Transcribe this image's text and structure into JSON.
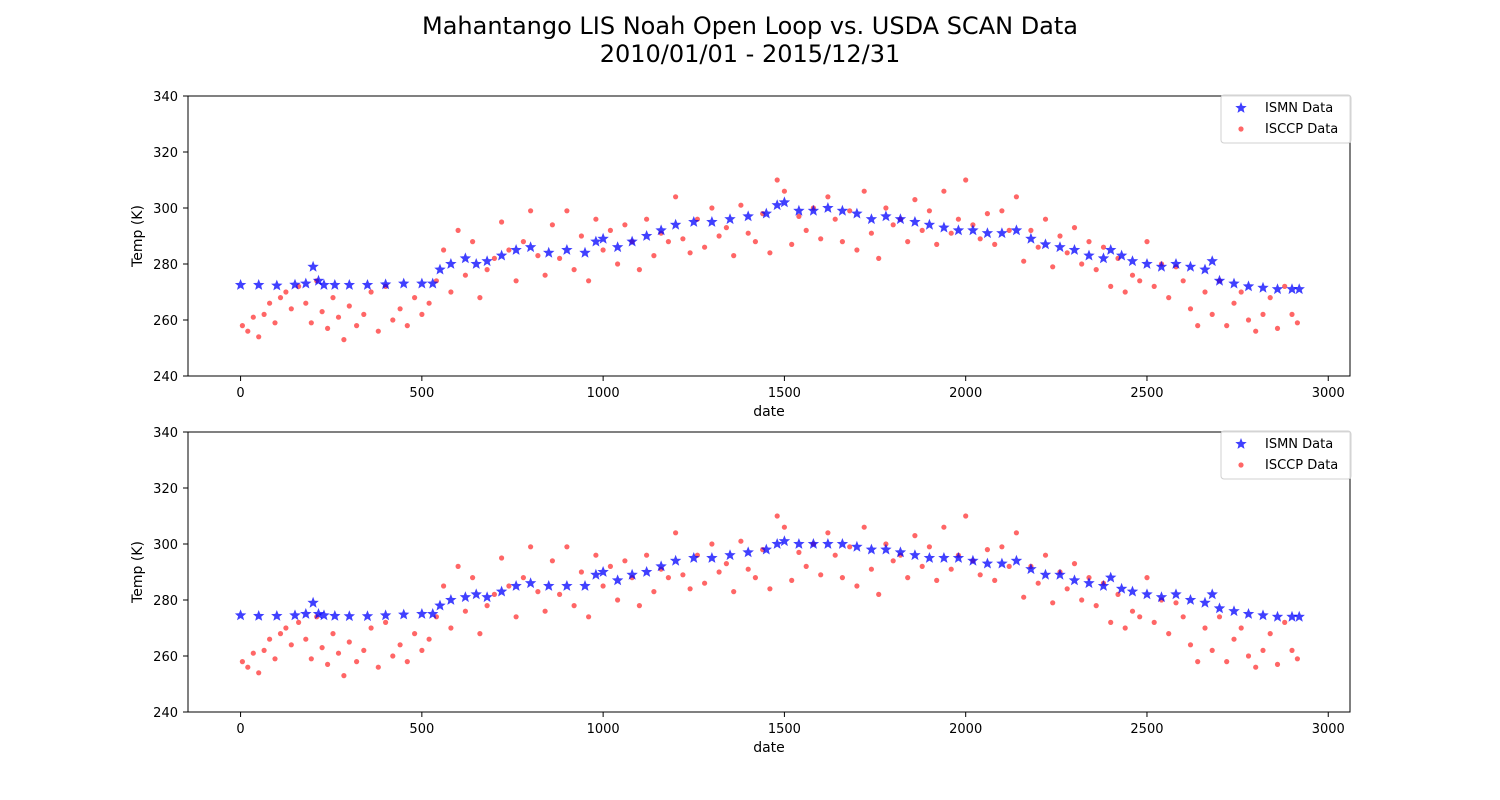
{
  "figure": {
    "title_line1": "Mahantango LIS Noah Open Loop vs. USDA SCAN Data",
    "title_line2": "2010/01/01 - 2015/12/31"
  },
  "colors": {
    "ismn": "#0000ff",
    "isccp": "#ff0000"
  },
  "chart_data": [
    {
      "type": "scatter",
      "xlabel": "date",
      "ylabel": "Temp (K)",
      "xlim": [
        -145,
        3060
      ],
      "ylim": [
        240,
        340
      ],
      "xticks": [
        0,
        500,
        1000,
        1500,
        2000,
        2500,
        3000
      ],
      "yticks": [
        240,
        260,
        280,
        300,
        320,
        340
      ],
      "legend_position": "top-right",
      "series": [
        {
          "name": "ISMN Data",
          "marker": "star",
          "color": "#0000ff",
          "x": [
            0,
            50,
            100,
            150,
            180,
            200,
            215,
            230,
            260,
            300,
            350,
            400,
            450,
            500,
            530,
            550,
            580,
            620,
            650,
            680,
            720,
            760,
            800,
            850,
            900,
            950,
            980,
            1000,
            1040,
            1080,
            1120,
            1160,
            1200,
            1250,
            1300,
            1350,
            1400,
            1450,
            1480,
            1500,
            1540,
            1580,
            1620,
            1660,
            1700,
            1740,
            1780,
            1820,
            1860,
            1900,
            1940,
            1980,
            2020,
            2060,
            2100,
            2140,
            2180,
            2220,
            2260,
            2300,
            2340,
            2380,
            2400,
            2430,
            2460,
            2500,
            2540,
            2580,
            2620,
            2660,
            2680,
            2700,
            2740,
            2780,
            2820,
            2860,
            2900,
            2920
          ],
          "y": [
            272.5,
            272.5,
            272.3,
            272.6,
            273,
            279,
            274,
            272.5,
            272.5,
            272.5,
            272.5,
            272.7,
            273,
            273,
            273,
            278,
            280,
            282,
            280,
            281,
            283,
            285,
            286,
            284,
            285,
            284,
            288,
            289,
            286,
            288,
            290,
            292,
            294,
            295,
            295,
            296,
            297,
            298,
            301,
            302,
            299,
            299,
            300,
            299,
            298,
            296,
            297,
            296,
            295,
            294,
            293,
            292,
            292,
            291,
            291,
            292,
            289,
            287,
            286,
            285,
            283,
            282,
            285,
            283,
            281,
            280,
            279,
            280,
            279,
            278,
            281,
            274,
            273,
            272,
            271.5,
            271,
            271,
            271
          ]
        },
        {
          "name": "ISCCP Data",
          "marker": "circle",
          "color": "#ff0000",
          "x": [
            5,
            20,
            35,
            50,
            65,
            80,
            95,
            110,
            125,
            140,
            160,
            180,
            195,
            210,
            225,
            240,
            255,
            270,
            285,
            300,
            320,
            340,
            360,
            380,
            400,
            420,
            440,
            460,
            480,
            500,
            520,
            540,
            560,
            580,
            600,
            620,
            640,
            660,
            680,
            700,
            720,
            740,
            760,
            780,
            800,
            820,
            840,
            860,
            880,
            900,
            920,
            940,
            960,
            980,
            1000,
            1020,
            1040,
            1060,
            1080,
            1100,
            1120,
            1140,
            1160,
            1180,
            1200,
            1220,
            1240,
            1260,
            1280,
            1300,
            1320,
            1340,
            1360,
            1380,
            1400,
            1420,
            1440,
            1460,
            1480,
            1500,
            1520,
            1540,
            1560,
            1580,
            1600,
            1620,
            1640,
            1660,
            1680,
            1700,
            1720,
            1740,
            1760,
            1780,
            1800,
            1820,
            1840,
            1860,
            1880,
            1900,
            1920,
            1940,
            1960,
            1980,
            2000,
            2020,
            2040,
            2060,
            2080,
            2100,
            2120,
            2140,
            2160,
            2180,
            2200,
            2220,
            2240,
            2260,
            2280,
            2300,
            2320,
            2340,
            2360,
            2380,
            2400,
            2420,
            2440,
            2460,
            2480,
            2500,
            2520,
            2540,
            2560,
            2580,
            2600,
            2620,
            2640,
            2660,
            2680,
            2700,
            2720,
            2740,
            2760,
            2780,
            2800,
            2820,
            2840,
            2860,
            2880,
            2900,
            2915
          ],
          "y": [
            258,
            256,
            261,
            254,
            262,
            266,
            259,
            268,
            270,
            264,
            272,
            266,
            259,
            274,
            263,
            257,
            268,
            261,
            253,
            265,
            258,
            262,
            270,
            256,
            272,
            260,
            264,
            258,
            268,
            262,
            266,
            274,
            285,
            270,
            292,
            276,
            288,
            268,
            278,
            282,
            295,
            285,
            274,
            288,
            299,
            283,
            276,
            294,
            282,
            299,
            278,
            290,
            274,
            296,
            285,
            292,
            280,
            294,
            288,
            278,
            296,
            283,
            291,
            288,
            304,
            289,
            284,
            296,
            286,
            300,
            290,
            293,
            283,
            301,
            291,
            288,
            298,
            284,
            310,
            306,
            287,
            297,
            292,
            300,
            289,
            304,
            296,
            288,
            299,
            285,
            306,
            291,
            282,
            300,
            294,
            296,
            288,
            303,
            292,
            299,
            287,
            306,
            291,
            296,
            310,
            294,
            289,
            298,
            287,
            299,
            292,
            304,
            281,
            292,
            286,
            296,
            279,
            290,
            284,
            293,
            280,
            288,
            278,
            286,
            272,
            282,
            270,
            276,
            274,
            288,
            272,
            280,
            268,
            279,
            274,
            264,
            258,
            270,
            262,
            274,
            258,
            266,
            270,
            260,
            256,
            262,
            268,
            257,
            272,
            262,
            259
          ]
        }
      ]
    },
    {
      "type": "scatter",
      "xlabel": "date",
      "ylabel": "Temp (K)",
      "xlim": [
        -145,
        3060
      ],
      "ylim": [
        240,
        340
      ],
      "xticks": [
        0,
        500,
        1000,
        1500,
        2000,
        2500,
        3000
      ],
      "yticks": [
        240,
        260,
        280,
        300,
        320,
        340
      ],
      "legend_position": "top-right",
      "series": [
        {
          "name": "ISMN Data",
          "marker": "star",
          "color": "#0000ff",
          "x": [
            0,
            50,
            100,
            150,
            180,
            200,
            215,
            230,
            260,
            300,
            350,
            400,
            450,
            500,
            530,
            550,
            580,
            620,
            650,
            680,
            720,
            760,
            800,
            850,
            900,
            950,
            980,
            1000,
            1040,
            1080,
            1120,
            1160,
            1200,
            1250,
            1300,
            1350,
            1400,
            1450,
            1480,
            1500,
            1540,
            1580,
            1620,
            1660,
            1700,
            1740,
            1780,
            1820,
            1860,
            1900,
            1940,
            1980,
            2020,
            2060,
            2100,
            2140,
            2180,
            2220,
            2260,
            2300,
            2340,
            2380,
            2400,
            2430,
            2460,
            2500,
            2540,
            2580,
            2620,
            2660,
            2680,
            2700,
            2740,
            2780,
            2820,
            2860,
            2900,
            2920
          ],
          "y": [
            274.5,
            274.3,
            274.3,
            274.5,
            275,
            279,
            275,
            274.5,
            274.3,
            274.2,
            274.2,
            274.5,
            274.8,
            275,
            275,
            278,
            280,
            281,
            282,
            281,
            283,
            285,
            286,
            285,
            285,
            285,
            289,
            290,
            287,
            289,
            290,
            292,
            294,
            295,
            295,
            296,
            297,
            298,
            300,
            301,
            300,
            300,
            300,
            300,
            299,
            298,
            298,
            297,
            296,
            295,
            295,
            295,
            294,
            293,
            293,
            294,
            291,
            289,
            289,
            287,
            286,
            285,
            288,
            284,
            283,
            282,
            281,
            282,
            280,
            279,
            282,
            277,
            276,
            275,
            274.5,
            274,
            274,
            274
          ]
        },
        {
          "name": "ISCCP Data",
          "marker": "circle",
          "color": "#ff0000",
          "x": [
            5,
            20,
            35,
            50,
            65,
            80,
            95,
            110,
            125,
            140,
            160,
            180,
            195,
            210,
            225,
            240,
            255,
            270,
            285,
            300,
            320,
            340,
            360,
            380,
            400,
            420,
            440,
            460,
            480,
            500,
            520,
            540,
            560,
            580,
            600,
            620,
            640,
            660,
            680,
            700,
            720,
            740,
            760,
            780,
            800,
            820,
            840,
            860,
            880,
            900,
            920,
            940,
            960,
            980,
            1000,
            1020,
            1040,
            1060,
            1080,
            1100,
            1120,
            1140,
            1160,
            1180,
            1200,
            1220,
            1240,
            1260,
            1280,
            1300,
            1320,
            1340,
            1360,
            1380,
            1400,
            1420,
            1440,
            1460,
            1480,
            1500,
            1520,
            1540,
            1560,
            1580,
            1600,
            1620,
            1640,
            1660,
            1680,
            1700,
            1720,
            1740,
            1760,
            1780,
            1800,
            1820,
            1840,
            1860,
            1880,
            1900,
            1920,
            1940,
            1960,
            1980,
            2000,
            2020,
            2040,
            2060,
            2080,
            2100,
            2120,
            2140,
            2160,
            2180,
            2200,
            2220,
            2240,
            2260,
            2280,
            2300,
            2320,
            2340,
            2360,
            2380,
            2400,
            2420,
            2440,
            2460,
            2480,
            2500,
            2520,
            2540,
            2560,
            2580,
            2600,
            2620,
            2640,
            2660,
            2680,
            2700,
            2720,
            2740,
            2760,
            2780,
            2800,
            2820,
            2840,
            2860,
            2880,
            2900,
            2915
          ],
          "y": [
            258,
            256,
            261,
            254,
            262,
            266,
            259,
            268,
            270,
            264,
            272,
            266,
            259,
            274,
            263,
            257,
            268,
            261,
            253,
            265,
            258,
            262,
            270,
            256,
            272,
            260,
            264,
            258,
            268,
            262,
            266,
            274,
            285,
            270,
            292,
            276,
            288,
            268,
            278,
            282,
            295,
            285,
            274,
            288,
            299,
            283,
            276,
            294,
            282,
            299,
            278,
            290,
            274,
            296,
            285,
            292,
            280,
            294,
            288,
            278,
            296,
            283,
            291,
            288,
            304,
            289,
            284,
            296,
            286,
            300,
            290,
            293,
            283,
            301,
            291,
            288,
            298,
            284,
            310,
            306,
            287,
            297,
            292,
            300,
            289,
            304,
            296,
            288,
            299,
            285,
            306,
            291,
            282,
            300,
            294,
            296,
            288,
            303,
            292,
            299,
            287,
            306,
            291,
            296,
            310,
            294,
            289,
            298,
            287,
            299,
            292,
            304,
            281,
            292,
            286,
            296,
            279,
            290,
            284,
            293,
            280,
            288,
            278,
            286,
            272,
            282,
            270,
            276,
            274,
            288,
            272,
            280,
            268,
            279,
            274,
            264,
            258,
            270,
            262,
            274,
            258,
            266,
            270,
            260,
            256,
            262,
            268,
            257,
            272,
            262,
            259
          ]
        }
      ]
    }
  ]
}
